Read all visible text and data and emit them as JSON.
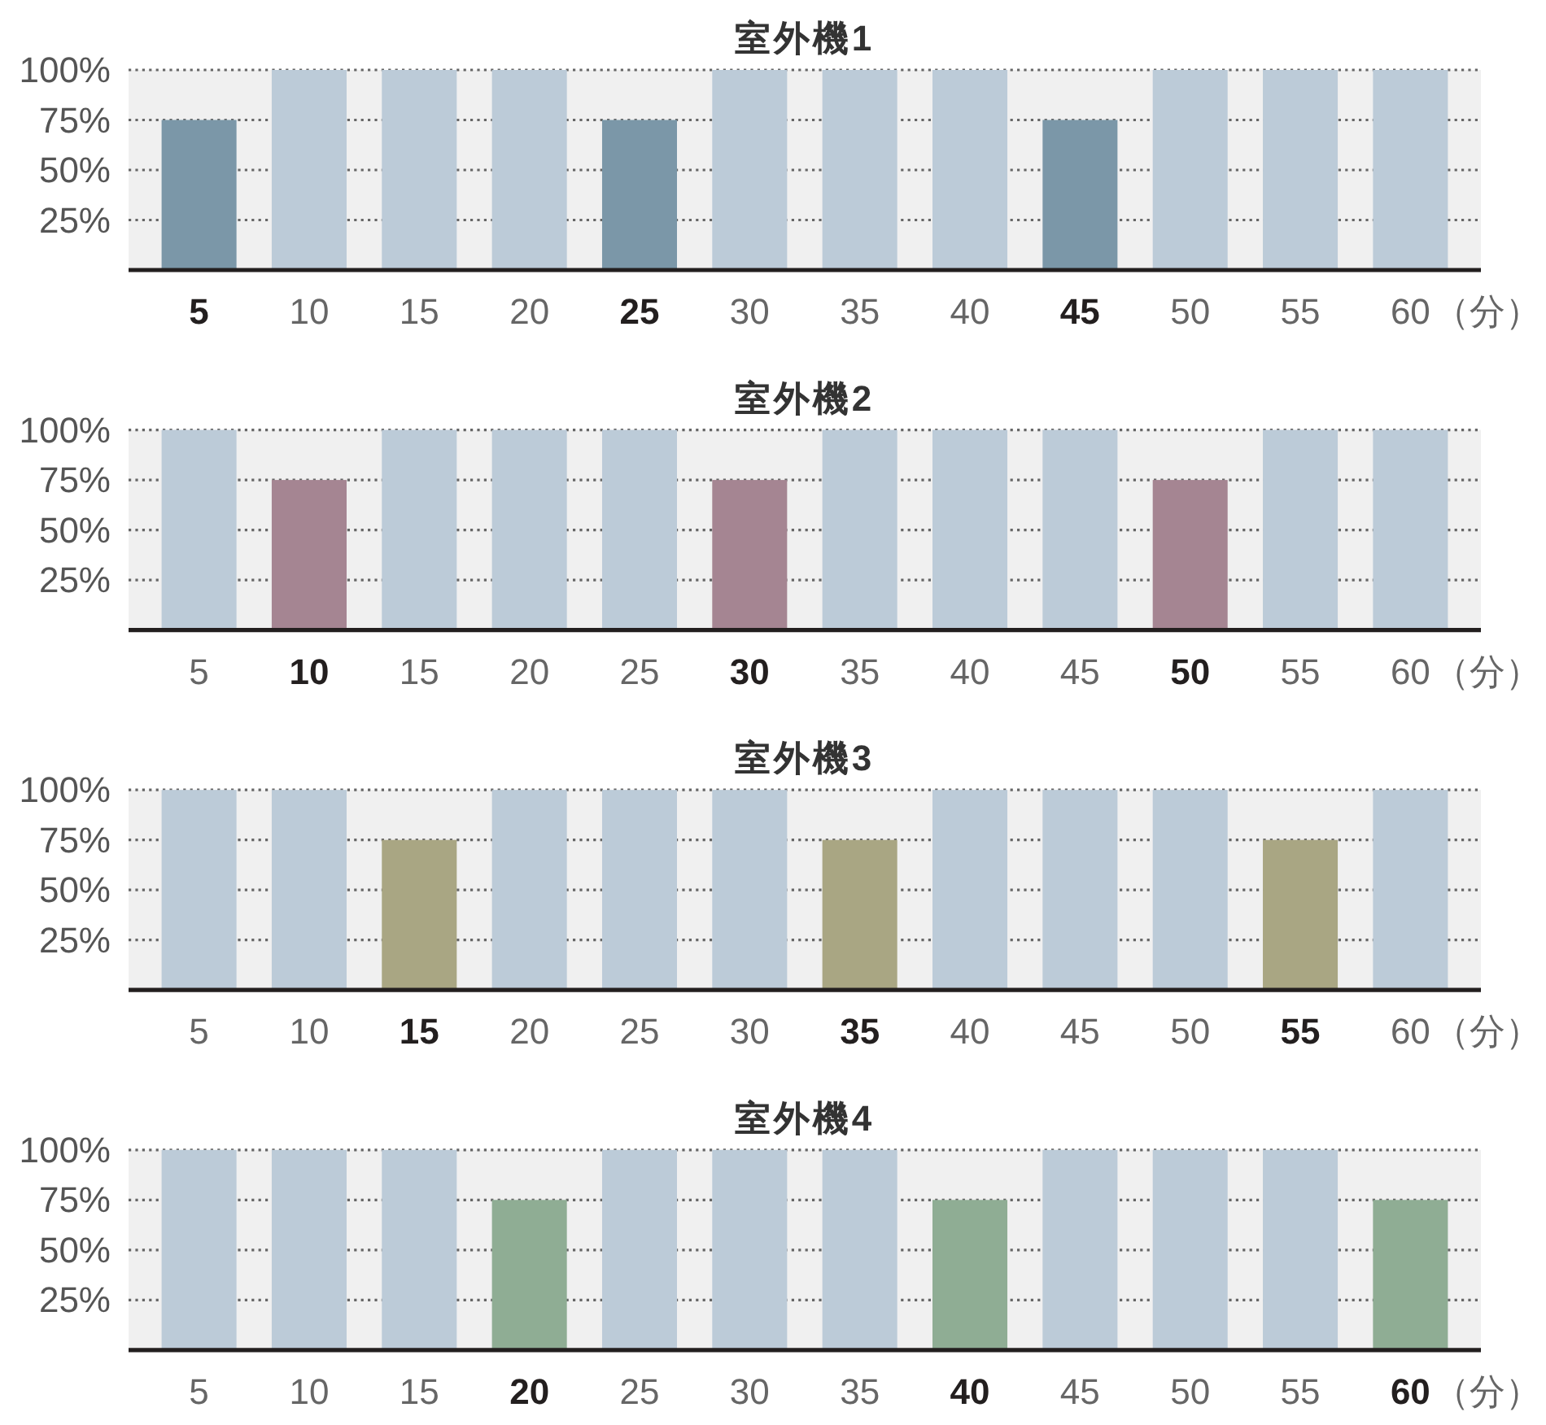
{
  "chart_data": [
    {
      "type": "bar",
      "title": "室外機1",
      "xlabel": "（分）",
      "categories": [
        "5",
        "10",
        "15",
        "20",
        "25",
        "30",
        "35",
        "40",
        "45",
        "50",
        "55",
        "60"
      ],
      "values": [
        75,
        100,
        100,
        100,
        75,
        100,
        100,
        100,
        75,
        100,
        100,
        100
      ],
      "colors": [
        "#7b97a8",
        "#bccbd8",
        "#bccbd8",
        "#bccbd8",
        "#7b97a8",
        "#bccbd8",
        "#bccbd8",
        "#bccbd8",
        "#7b97a8",
        "#bccbd8",
        "#bccbd8",
        "#bccbd8"
      ],
      "ylim": [
        0,
        100
      ],
      "yticks": [
        {
          "value": 25,
          "label": "25%"
        },
        {
          "value": 50,
          "label": "50%"
        },
        {
          "value": 75,
          "label": "75%"
        },
        {
          "value": 100,
          "label": "100%"
        }
      ],
      "grid": "y"
    },
    {
      "type": "bar",
      "title": "室外機2",
      "xlabel": "（分）",
      "categories": [
        "5",
        "10",
        "15",
        "20",
        "25",
        "30",
        "35",
        "40",
        "45",
        "50",
        "55",
        "60"
      ],
      "values": [
        100,
        75,
        100,
        100,
        100,
        75,
        100,
        100,
        100,
        75,
        100,
        100
      ],
      "colors": [
        "#bccbd8",
        "#a58592",
        "#bccbd8",
        "#bccbd8",
        "#bccbd8",
        "#a58592",
        "#bccbd8",
        "#bccbd8",
        "#bccbd8",
        "#a58592",
        "#bccbd8",
        "#bccbd8"
      ],
      "ylim": [
        0,
        100
      ],
      "yticks": [
        {
          "value": 25,
          "label": "25%"
        },
        {
          "value": 50,
          "label": "50%"
        },
        {
          "value": 75,
          "label": "75%"
        },
        {
          "value": 100,
          "label": "100%"
        }
      ],
      "grid": "y"
    },
    {
      "type": "bar",
      "title": "室外機3",
      "xlabel": "（分）",
      "categories": [
        "5",
        "10",
        "15",
        "20",
        "25",
        "30",
        "35",
        "40",
        "45",
        "50",
        "55",
        "60"
      ],
      "values": [
        100,
        100,
        75,
        100,
        100,
        100,
        75,
        100,
        100,
        100,
        75,
        100
      ],
      "colors": [
        "#bccbd8",
        "#bccbd8",
        "#a9a683",
        "#bccbd8",
        "#bccbd8",
        "#bccbd8",
        "#a9a683",
        "#bccbd8",
        "#bccbd8",
        "#bccbd8",
        "#a9a683",
        "#bccbd8"
      ],
      "ylim": [
        0,
        100
      ],
      "yticks": [
        {
          "value": 25,
          "label": "25%"
        },
        {
          "value": 50,
          "label": "50%"
        },
        {
          "value": 75,
          "label": "75%"
        },
        {
          "value": 100,
          "label": "100%"
        }
      ],
      "grid": "y"
    },
    {
      "type": "bar",
      "title": "室外機4",
      "xlabel": "（分）",
      "categories": [
        "5",
        "10",
        "15",
        "20",
        "25",
        "30",
        "35",
        "40",
        "45",
        "50",
        "55",
        "60"
      ],
      "values": [
        100,
        100,
        100,
        75,
        100,
        100,
        100,
        75,
        100,
        100,
        100,
        75
      ],
      "colors": [
        "#bccbd8",
        "#bccbd8",
        "#bccbd8",
        "#8fad94",
        "#bccbd8",
        "#bccbd8",
        "#bccbd8",
        "#8fad94",
        "#bccbd8",
        "#bccbd8",
        "#bccbd8",
        "#8fad94"
      ],
      "ylim": [
        0,
        100
      ],
      "yticks": [
        {
          "value": 25,
          "label": "25%"
        },
        {
          "value": 50,
          "label": "50%"
        },
        {
          "value": 75,
          "label": "75%"
        },
        {
          "value": 100,
          "label": "100%"
        }
      ],
      "grid": "y"
    }
  ]
}
